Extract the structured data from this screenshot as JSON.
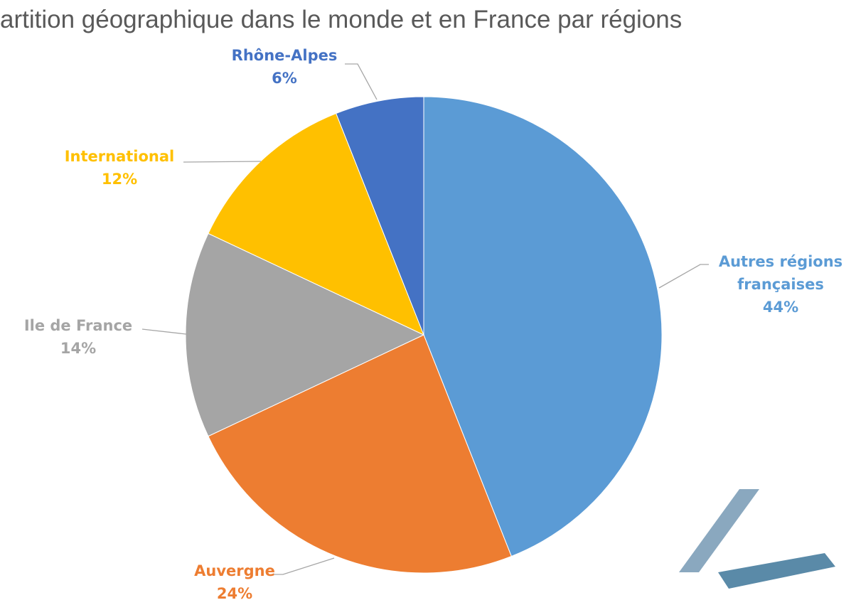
{
  "chart_data": {
    "type": "pie",
    "title": "artition géographique dans le monde et en France par régions",
    "categories": [
      "Autres régions françaises",
      "Auvergne",
      "Ile de France",
      "International",
      "Rhône-Alpes"
    ],
    "values": [
      44,
      24,
      14,
      12,
      6
    ],
    "value_labels": [
      "44%",
      "24%",
      "14%",
      "12%",
      "6%"
    ],
    "colors": [
      "#5b9bd5",
      "#ed7d31",
      "#a5a5a5",
      "#ffc000",
      "#4472c4"
    ]
  }
}
